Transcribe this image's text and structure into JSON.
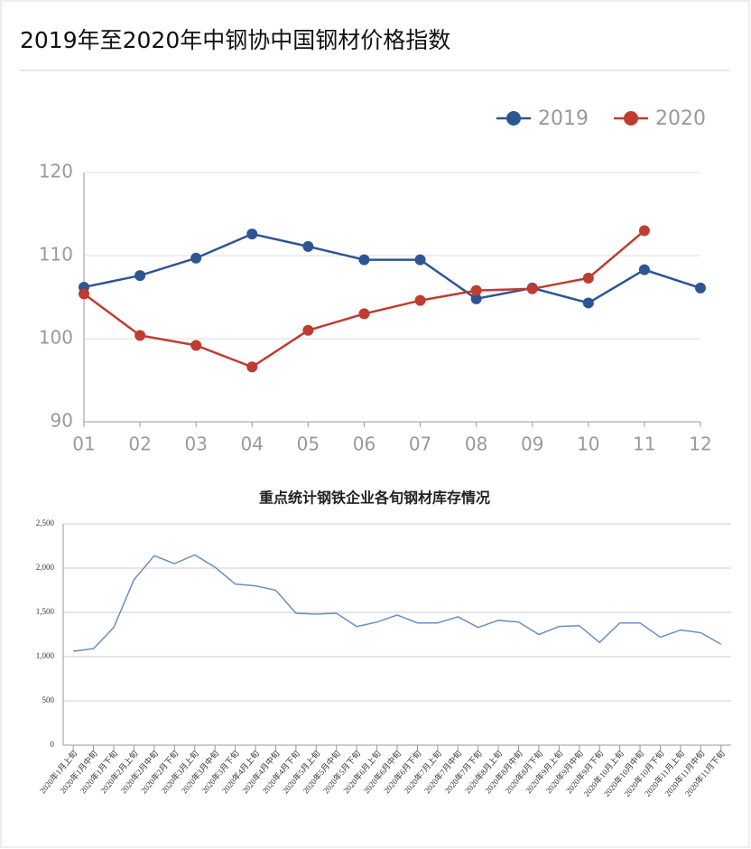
{
  "title": "2019年至2020年中钢协中国钢材价格指数",
  "chart_data": [
    {
      "type": "line",
      "categories": [
        "01",
        "02",
        "03",
        "04",
        "05",
        "06",
        "07",
        "08",
        "09",
        "10",
        "11",
        "12"
      ],
      "series": [
        {
          "name": "2019",
          "color": "#2e5593",
          "values": [
            106.2,
            107.6,
            109.7,
            112.6,
            111.1,
            109.5,
            109.5,
            104.8,
            106.1,
            104.3,
            108.3,
            106.1
          ]
        },
        {
          "name": "2020",
          "color": "#c03b30",
          "values": [
            105.4,
            100.4,
            99.2,
            96.6,
            101.0,
            103.0,
            104.6,
            105.8,
            106.0,
            107.3,
            113.0,
            null
          ]
        }
      ],
      "ylim": [
        90,
        120
      ],
      "yticks": [
        90,
        100,
        110,
        120
      ],
      "grid": true,
      "legend": "top-right"
    },
    {
      "type": "line",
      "title": "重点统计钢铁企业各旬钢材库存情况",
      "categories": [
        "2020年1月上旬",
        "2020年1月中旬",
        "2020年1月下旬",
        "2020年2月上旬",
        "2020年2月中旬",
        "2020年2月下旬",
        "2020年3月上旬",
        "2020年3月中旬",
        "2020年3月下旬",
        "2020年4月上旬",
        "2020年4月中旬",
        "2020年4月下旬",
        "2020年5月上旬",
        "2020年5月中旬",
        "2020年5月下旬",
        "2020年6月上旬",
        "2020年6月中旬",
        "2020年6月下旬",
        "2020年7月上旬",
        "2020年7月中旬",
        "2020年7月下旬",
        "2020年8月上旬",
        "2020年8月中旬",
        "2020年8月下旬",
        "2020年9月上旬",
        "2020年9月中旬",
        "2020年9月下旬",
        "2020年10月上旬",
        "2020年10月中旬",
        "2020年10月下旬",
        "2020年11月上旬",
        "2020年11月中旬",
        "2020年11月下旬"
      ],
      "series": [
        {
          "color": "#6b8fbf",
          "values": [
            1060,
            1090,
            1330,
            1870,
            2140,
            2050,
            2150,
            2010,
            1820,
            1800,
            1750,
            1490,
            1480,
            1490,
            1340,
            1390,
            1470,
            1380,
            1380,
            1450,
            1330,
            1410,
            1390,
            1250,
            1340,
            1350,
            1160,
            1380,
            1380,
            1220,
            1300,
            1270,
            1140
          ]
        }
      ],
      "ylim": [
        0,
        2500
      ],
      "yticks": [
        0,
        500,
        {
          "value": 1000,
          "label": "1,000"
        },
        {
          "value": 1500,
          "label": "1,500"
        },
        {
          "value": 2000,
          "label": "2,000"
        },
        {
          "value": 2500,
          "label": "2,500"
        }
      ],
      "grid": true
    }
  ]
}
